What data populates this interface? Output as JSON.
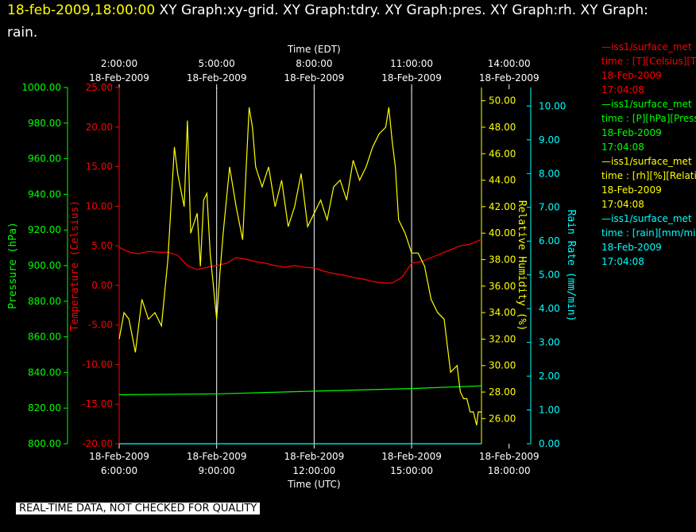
{
  "header": {
    "timestamp": "18-feb-2009,18:00:00",
    "line1_rest": "  XY Graph:xy-grid.  XY Graph:tdry.  XY Graph:pres.  XY Graph:rh.  XY Graph:",
    "line2": "rain."
  },
  "legend": [
    {
      "line1": "—iss1/surface_met",
      "line2": "time : [T][Celsius][T",
      "line3": "18-Feb-2009",
      "line4": "17:04:08",
      "color": "#ff0000"
    },
    {
      "line1": "—iss1/surface_met",
      "line2": "time : [P][hPa][Press",
      "line3": "18-Feb-2009",
      "line4": "17:04:08",
      "color": "#00ff00"
    },
    {
      "line1": "—iss1/surface_met",
      "line2": "time : [rh][%][Relati",
      "line3": "18-Feb-2009",
      "line4": "17:04:08",
      "color": "#ffff00"
    },
    {
      "line1": "—iss1/surface_met",
      "line2": "time : [rain][mm/min",
      "line3": "18-Feb-2009",
      "line4": "17:04:08",
      "color": "#00ffff"
    }
  ],
  "disclaimer": "REAL-TIME DATA, NOT CHECKED FOR QUALITY",
  "chart_data": {
    "type": "line",
    "top_axis": {
      "label": "Time (EDT)",
      "ticks": [
        {
          "time": "2:00:00",
          "date": "18-Feb-2009"
        },
        {
          "time": "5:00:00",
          "date": "18-Feb-2009"
        },
        {
          "time": "8:00:00",
          "date": "18-Feb-2009"
        },
        {
          "time": "11:00:00",
          "date": "18-Feb-2009"
        },
        {
          "time": "14:00:00",
          "date": "18-Feb-2009"
        }
      ]
    },
    "bottom_axis": {
      "label": "Time (UTC)",
      "ticks": [
        {
          "date": "18-Feb-2009",
          "time": "6:00:00"
        },
        {
          "date": "18-Feb-2009",
          "time": "9:00:00"
        },
        {
          "date": "18-Feb-2009",
          "time": "12:00:00"
        },
        {
          "date": "18-Feb-2009",
          "time": "15:00:00"
        },
        {
          "date": "18-Feb-2009",
          "time": "18:00:00"
        }
      ],
      "range_hours_utc": [
        6.0,
        17.15
      ]
    },
    "pressure_axis": {
      "label": "Pressure (hPa)",
      "color": "#00ff00",
      "range": [
        800,
        1000
      ],
      "ticks": [
        "800.00",
        "820.00",
        "840.00",
        "860.00",
        "880.00",
        "900.00",
        "920.00",
        "940.00",
        "960.00",
        "980.00",
        "1000.00"
      ]
    },
    "temperature_axis": {
      "label": "Temperature (Celsius)",
      "color": "#ff0000",
      "range": [
        -20,
        25
      ],
      "ticks": [
        "-20.00",
        "-15.00",
        "-10.00",
        "-5.00",
        "0.00",
        "5.00",
        "10.00",
        "15.00",
        "20.00",
        "25.00"
      ]
    },
    "humidity_axis": {
      "label": "Relative Humidity (%)",
      "color": "#ffff00",
      "range": [
        24.1,
        51.0
      ],
      "ticks": [
        "26.00",
        "28.00",
        "30.00",
        "32.00",
        "34.00",
        "36.00",
        "38.00",
        "40.00",
        "42.00",
        "44.00",
        "46.00",
        "48.00",
        "50.00"
      ]
    },
    "rain_axis": {
      "label": "Rain Rate (mm/min)",
      "color": "#00ffff",
      "range": [
        0,
        10.55
      ],
      "ticks": [
        "0.00",
        "1.00",
        "2.00",
        "3.00",
        "4.00",
        "5.00",
        "6.00",
        "7.00",
        "8.00",
        "9.00",
        "10.00"
      ]
    },
    "grid_hours_utc": [
      9,
      12,
      15
    ],
    "series": [
      {
        "name": "iss1/surface_met T",
        "axis": "temperature",
        "color": "#ff0000",
        "x": [
          6.0,
          6.3,
          6.6,
          6.9,
          7.2,
          7.5,
          7.8,
          8.1,
          8.4,
          8.7,
          9.0,
          9.3,
          9.6,
          9.9,
          10.2,
          10.5,
          10.8,
          11.1,
          11.4,
          11.7,
          12.0,
          12.3,
          12.6,
          12.9,
          13.2,
          13.5,
          13.8,
          14.1,
          14.4,
          14.7,
          15.0,
          15.3,
          15.6,
          15.9,
          16.2,
          16.5,
          16.8,
          17.15
        ],
        "values": [
          4.8,
          4.2,
          4.0,
          4.3,
          4.2,
          4.2,
          3.8,
          2.5,
          2.0,
          2.3,
          2.5,
          2.8,
          3.5,
          3.3,
          3.0,
          2.8,
          2.5,
          2.3,
          2.5,
          2.3,
          2.2,
          1.8,
          1.5,
          1.3,
          1.0,
          0.8,
          0.5,
          0.3,
          0.3,
          1.0,
          2.8,
          3.0,
          3.5,
          4.0,
          4.5,
          5.0,
          5.2,
          5.8
        ]
      },
      {
        "name": "iss1/surface_met P",
        "axis": "pressure",
        "color": "#00ff00",
        "x": [
          6.0,
          9.0,
          12.0,
          15.0,
          17.15
        ],
        "values": [
          827.5,
          828.0,
          829.5,
          831.0,
          832.5
        ]
      },
      {
        "name": "iss1/surface_met rh",
        "axis": "humidity",
        "color": "#ffff00",
        "x": [
          6.0,
          6.15,
          6.3,
          6.5,
          6.7,
          6.9,
          7.1,
          7.3,
          7.5,
          7.7,
          7.8,
          8.0,
          8.1,
          8.2,
          8.4,
          8.5,
          8.6,
          8.7,
          8.8,
          8.9,
          9.0,
          9.1,
          9.2,
          9.4,
          9.6,
          9.8,
          10.0,
          10.1,
          10.2,
          10.4,
          10.6,
          10.8,
          11.0,
          11.2,
          11.4,
          11.6,
          11.8,
          12.0,
          12.2,
          12.4,
          12.6,
          12.8,
          13.0,
          13.2,
          13.4,
          13.6,
          13.8,
          14.0,
          14.2,
          14.3,
          14.4,
          14.5,
          14.6,
          14.7,
          14.8,
          15.0,
          15.2,
          15.4,
          15.6,
          15.8,
          16.0,
          16.2,
          16.4,
          16.5,
          16.6,
          16.7,
          16.8,
          16.9,
          17.0,
          17.05,
          17.15
        ],
        "values": [
          32.0,
          34.0,
          33.5,
          31.0,
          35.0,
          33.5,
          34.0,
          33.0,
          38.0,
          46.5,
          44.5,
          42.0,
          48.5,
          40.0,
          41.5,
          37.5,
          42.5,
          43.0,
          38.5,
          36.0,
          33.5,
          37.0,
          40.0,
          45.0,
          42.0,
          39.5,
          49.5,
          48.0,
          45.0,
          43.5,
          45.0,
          42.0,
          44.0,
          40.5,
          42.0,
          44.5,
          40.5,
          41.5,
          42.5,
          41.0,
          43.5,
          44.0,
          42.5,
          45.5,
          44.0,
          45.0,
          46.5,
          47.5,
          48.0,
          49.5,
          47.0,
          45.0,
          41.0,
          40.5,
          40.0,
          38.5,
          38.5,
          37.5,
          35.0,
          34.0,
          33.5,
          29.5,
          30.0,
          28.0,
          27.5,
          27.5,
          26.5,
          26.5,
          25.5,
          26.5,
          26.5
        ]
      },
      {
        "name": "iss1/surface_met rain",
        "axis": "rain",
        "color": "#00ffff",
        "x": [
          6.0,
          17.15
        ],
        "values": [
          0.0,
          0.0
        ]
      }
    ],
    "grid": true,
    "legend_position": "right"
  }
}
